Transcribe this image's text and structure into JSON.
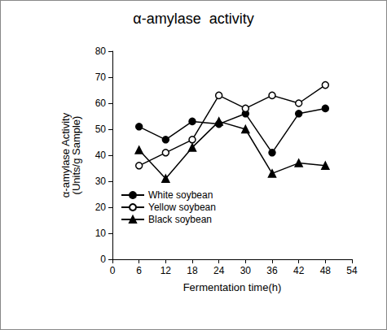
{
  "chart_data": {
    "type": "line",
    "title": "α-amylase  activity",
    "x_label": "Fermentation time(h)",
    "y_label": "α-amylase Activity\n(Units/g Sample)",
    "x": [
      6,
      12,
      18,
      24,
      30,
      36,
      42,
      48
    ],
    "series": [
      {
        "name": "White soybean",
        "color": "#000000",
        "marker": "circle",
        "values": [
          51,
          46,
          53,
          52,
          56,
          41,
          56,
          58
        ]
      },
      {
        "name": "Yellow soybean",
        "color": "#000000",
        "marker": "open_circle",
        "values": [
          36,
          41,
          46,
          63,
          58,
          63,
          60,
          67
        ]
      },
      {
        "name": "Black soybean",
        "color": "#000000",
        "marker": "triangle",
        "values": [
          42,
          31,
          43,
          53,
          50,
          33,
          37,
          36
        ]
      }
    ],
    "xlim": [
      0,
      54
    ],
    "xticks": [
      0,
      6,
      12,
      18,
      24,
      30,
      36,
      42,
      48,
      54
    ],
    "ylim": [
      0,
      80
    ],
    "yticks": [
      0,
      10,
      20,
      30,
      40,
      50,
      60,
      70,
      80
    ],
    "grid": false,
    "legend": "lower left"
  }
}
